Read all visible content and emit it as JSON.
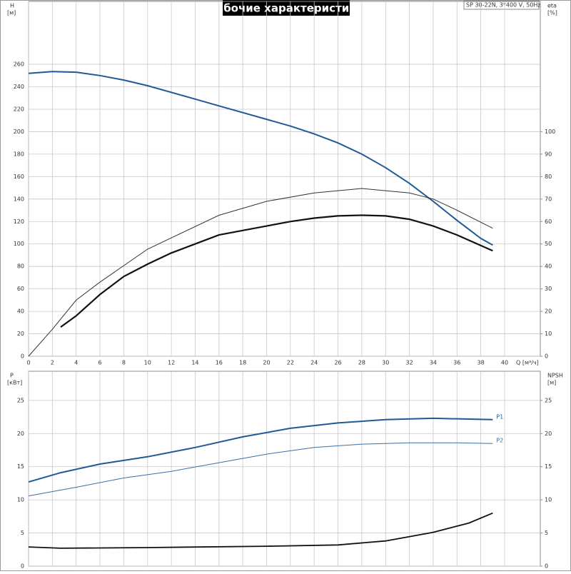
{
  "chart_data": [
    {
      "type": "line",
      "title": "Рабочие характеристики",
      "subtitle": "SP 30-22N, 3*400 V, 50Hz",
      "y_label": "H",
      "y_unit": "[м]",
      "y2_label": "eta",
      "y2_unit": "[%]",
      "x_label": "Q [м³/ч]",
      "xlim": [
        0,
        43
      ],
      "xticks": [
        0,
        2,
        4,
        6,
        8,
        10,
        12,
        14,
        16,
        18,
        20,
        22,
        24,
        26,
        28,
        30,
        32,
        34,
        36,
        38,
        40
      ],
      "ylim": [
        0,
        316
      ],
      "yticks": [
        0,
        20,
        40,
        60,
        80,
        100,
        120,
        140,
        160,
        180,
        200,
        220,
        240,
        260
      ],
      "y2lim": [
        0,
        158
      ],
      "y2ticks": [
        0,
        10,
        20,
        30,
        40,
        50,
        60,
        70,
        80,
        90,
        100
      ],
      "grid": true,
      "series": [
        {
          "color": "#1f5a96",
          "width": 2,
          "x": [
            0,
            2,
            4,
            6,
            8,
            10,
            12,
            14,
            16,
            18,
            20,
            22,
            24,
            26,
            28,
            30,
            32,
            34,
            36,
            38,
            39
          ],
          "values": [
            252,
            253.5,
            253,
            250,
            246,
            241,
            235,
            229,
            223,
            217,
            211,
            205,
            198,
            190,
            180,
            168,
            154,
            138,
            121,
            105,
            99
          ]
        },
        {
          "color": "#333333",
          "width": 1,
          "axis": "y2",
          "x": [
            0,
            2,
            4,
            6,
            10,
            16,
            20,
            24,
            28,
            32,
            34,
            36,
            39
          ],
          "values": [
            0,
            12,
            25,
            33,
            47.7,
            62.8,
            69,
            72.7,
            74.7,
            72.7,
            70,
            65,
            57
          ]
        },
        {
          "color": "#111111",
          "width": 2.2,
          "axis": "y2",
          "x": [
            2.7,
            4,
            6,
            8,
            10,
            12,
            14,
            16,
            18,
            20,
            22,
            24,
            26,
            28,
            30,
            32,
            34,
            36,
            39
          ],
          "values": [
            13,
            18,
            27.5,
            35.5,
            41,
            46,
            50,
            54,
            56,
            58,
            60,
            61.5,
            62.5,
            62.8,
            62.5,
            61,
            58,
            54,
            47
          ]
        }
      ]
    },
    {
      "type": "line",
      "y_label": "P",
      "y_unit": "[кВт]",
      "y2_label": "NPSH",
      "y2_unit": "[м]",
      "xlim": [
        0,
        43
      ],
      "xticks": [
        0,
        2,
        4,
        6,
        8,
        10,
        12,
        14,
        16,
        18,
        20,
        22,
        24,
        26,
        28,
        30,
        32,
        34,
        36,
        38,
        40
      ],
      "ylim": [
        0,
        29.4
      ],
      "yticks": [
        0,
        5,
        10,
        15,
        20,
        25
      ],
      "y2lim": [
        0,
        29.4
      ],
      "y2ticks": [
        0,
        5,
        10,
        15,
        20,
        25
      ],
      "grid": true,
      "series": [
        {
          "name": "P1",
          "color": "#1f5a96",
          "width": 2,
          "x": [
            0,
            2.7,
            6,
            10,
            14,
            18,
            22,
            26,
            30,
            34,
            39
          ],
          "values": [
            12.7,
            14.1,
            15.4,
            16.5,
            17.9,
            19.5,
            20.8,
            21.6,
            22.1,
            22.3,
            22.1
          ]
        },
        {
          "name": "P2",
          "color": "#3a6fa5",
          "width": 1,
          "x": [
            0,
            4,
            8,
            12,
            16,
            20,
            24,
            28,
            32,
            36,
            39
          ],
          "values": [
            10.6,
            11.9,
            13.3,
            14.3,
            15.6,
            16.9,
            17.9,
            18.4,
            18.6,
            18.6,
            18.5
          ]
        },
        {
          "color": "#111111",
          "width": 1.8,
          "axis": "y2",
          "x": [
            0,
            2.7,
            10,
            20,
            26,
            30,
            34,
            37,
            39
          ],
          "values": [
            2.9,
            2.7,
            2.8,
            3.0,
            3.2,
            3.8,
            5.1,
            6.5,
            8.0
          ]
        }
      ]
    }
  ]
}
